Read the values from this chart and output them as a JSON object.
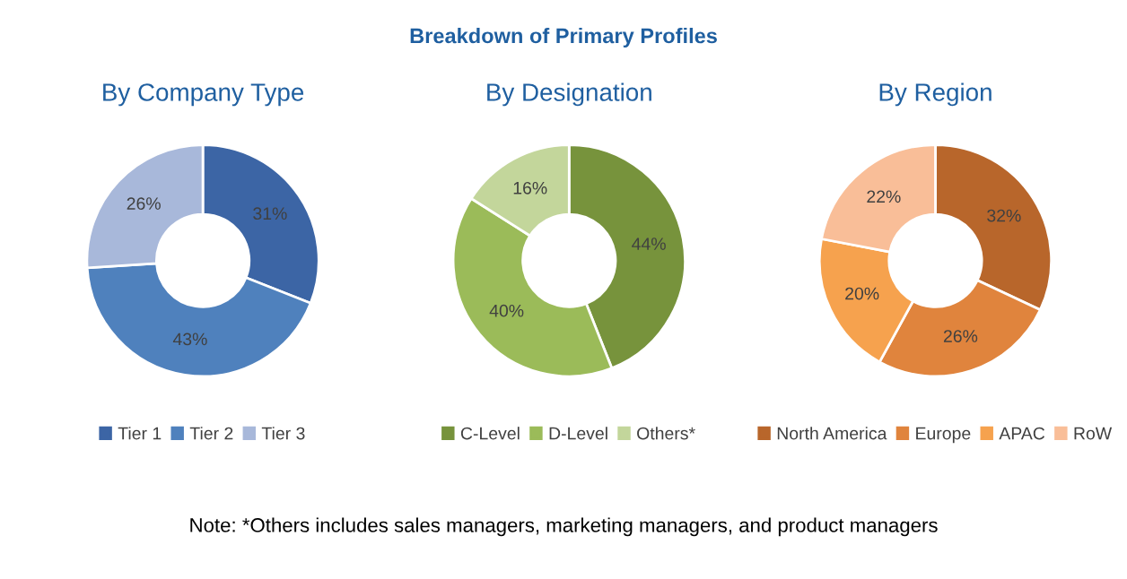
{
  "chart_data": [
    {
      "type": "donut",
      "title": "By Company Type",
      "categories": [
        "Tier 1",
        "Tier 2",
        "Tier 3"
      ],
      "values": [
        31,
        43,
        26
      ],
      "value_labels": [
        "31%",
        "43%",
        "26%"
      ],
      "colors": [
        "#3c65a5",
        "#4f81bd",
        "#a8b8da"
      ],
      "legend": "bottom",
      "annotations": [
        "Breakdown of Primary Profiles",
        "Note: *Others includes sales managers, marketing managers, and product managers"
      ]
    },
    {
      "type": "donut",
      "title": "By Designation",
      "categories": [
        "C-Level",
        "D-Level",
        "Others*"
      ],
      "values": [
        44,
        40,
        16
      ],
      "value_labels": [
        "44%",
        "40%",
        "16%"
      ],
      "colors": [
        "#77933c",
        "#9bbb59",
        "#c3d69b"
      ],
      "legend": "bottom"
    },
    {
      "type": "donut",
      "title": "By Region",
      "categories": [
        "North America",
        "Europe",
        "APAC",
        "RoW"
      ],
      "values": [
        32,
        26,
        20,
        22
      ],
      "value_labels": [
        "32%",
        "26%",
        "20%",
        "22%"
      ],
      "colors": [
        "#b8662b",
        "#e0843d",
        "#f6a24e",
        "#f9be98"
      ],
      "legend": "bottom"
    }
  ]
}
